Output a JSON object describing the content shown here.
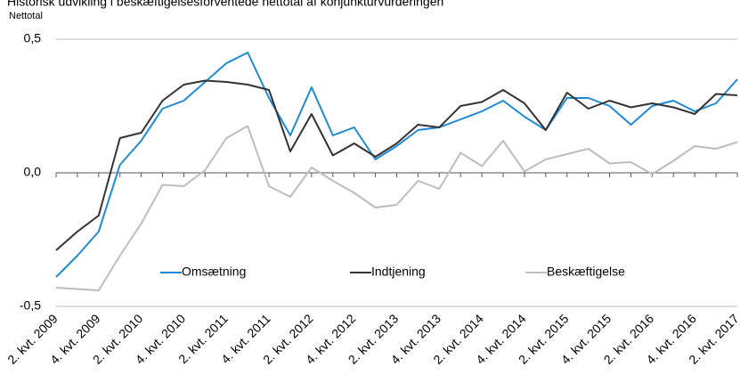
{
  "chart_data": {
    "type": "line",
    "title": "Historisk udvikling i beskæftigelsesforventede nettotal af konjunkturvurderingen",
    "y_label": "Nettotal",
    "categories": [
      "2. kvt. 2009",
      null,
      "4. kvt. 2009",
      null,
      "2. kvt. 2010",
      null,
      "4. kvt. 2010",
      null,
      "2. kvt. 2011",
      null,
      "4. kvt. 2011",
      null,
      "2. kvt. 2012",
      null,
      "4. kvt. 2012",
      null,
      "2. kvt. 2013",
      null,
      "4. kvt. 2013",
      null,
      "2. kvt. 2014",
      null,
      "4. kvt. 2014",
      null,
      "2. kvt. 2015",
      null,
      "4. kvt. 2015",
      null,
      "2. kvt. 2016",
      null,
      "4. kvt. 2016",
      null,
      "2. kvt. 2017"
    ],
    "series": [
      {
        "name": "Omsætning",
        "color": "#1f8ad4",
        "values": [
          -0.39,
          -0.31,
          -0.22,
          0.03,
          0.12,
          0.24,
          0.27,
          0.34,
          0.41,
          0.45,
          0.28,
          0.14,
          0.32,
          0.14,
          0.17,
          0.05,
          0.1,
          0.16,
          0.17,
          0.2,
          0.23,
          0.27,
          0.21,
          0.16,
          0.28,
          0.28,
          0.25,
          0.18,
          0.25,
          0.27,
          0.23,
          0.26,
          0.35
        ]
      },
      {
        "name": "Indtjening",
        "color": "#333333",
        "values": [
          -0.29,
          -0.22,
          -0.16,
          0.13,
          0.15,
          0.27,
          0.33,
          0.345,
          0.34,
          0.33,
          0.31,
          0.08,
          0.22,
          0.065,
          0.11,
          0.06,
          0.11,
          0.18,
          0.17,
          0.25,
          0.265,
          0.31,
          0.26,
          0.16,
          0.3,
          0.24,
          0.27,
          0.245,
          0.26,
          0.245,
          0.22,
          0.295,
          0.29
        ]
      },
      {
        "name": "Beskæftigelse",
        "color": "#bdbdbd",
        "values": [
          -0.43,
          -0.435,
          -0.44,
          -0.31,
          -0.19,
          -0.045,
          -0.05,
          0.01,
          0.13,
          0.175,
          -0.05,
          -0.09,
          0.02,
          -0.03,
          -0.075,
          -0.13,
          -0.12,
          -0.03,
          -0.06,
          0.075,
          0.025,
          0.12,
          0.005,
          0.05,
          0.07,
          0.09,
          0.035,
          0.04,
          -0.005,
          0.045,
          0.1,
          0.09,
          0.115
        ]
      }
    ],
    "ylim": [
      -0.5,
      0.5
    ],
    "yticks": [
      {
        "value": -0.5,
        "label": "-0,5"
      },
      {
        "value": 0,
        "label": "0,0"
      },
      {
        "value": 0.5,
        "label": "0,5"
      }
    ],
    "grid": true,
    "legend": "inside"
  }
}
